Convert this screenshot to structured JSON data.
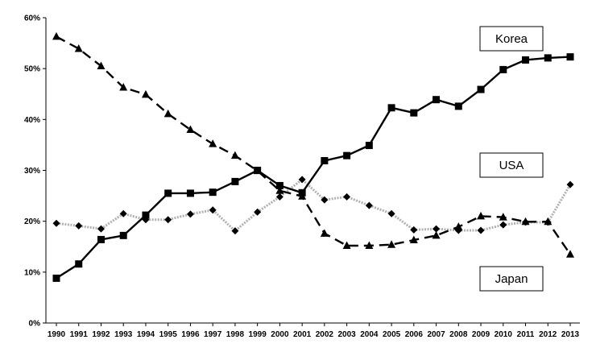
{
  "chart_data": {
    "type": "line",
    "title": "",
    "xlabel": "",
    "ylabel": "",
    "x": [
      1990,
      1991,
      1992,
      1993,
      1994,
      1995,
      1996,
      1997,
      1998,
      1999,
      2000,
      2001,
      2002,
      2003,
      2004,
      2005,
      2006,
      2007,
      2008,
      2009,
      2010,
      2011,
      2012,
      2013
    ],
    "ylim": [
      0,
      60
    ],
    "yticks": [
      0,
      10,
      20,
      30,
      40,
      50,
      60
    ],
    "ytick_labels": [
      "0%",
      "10%",
      "20%",
      "30%",
      "40%",
      "50%",
      "60%"
    ],
    "grid": false,
    "legend_placement": "right (labels beside series)",
    "series": [
      {
        "name": "Korea",
        "style": "solid",
        "marker": "square",
        "color": "#000000",
        "values": [
          8.8,
          11.6,
          16.4,
          17.2,
          21.2,
          25.5,
          25.5,
          25.7,
          27.8,
          30.0,
          27.0,
          25.6,
          31.9,
          32.9,
          34.9,
          42.3,
          41.3,
          43.9,
          42.6,
          45.9,
          49.8,
          51.7,
          52.1,
          52.3
        ]
      },
      {
        "name": "USA",
        "style": "dotted",
        "marker": "diamond",
        "color": "#b0b0b0",
        "values": [
          19.6,
          19.1,
          18.5,
          21.5,
          20.3,
          20.3,
          21.4,
          22.2,
          18.1,
          21.8,
          24.8,
          28.2,
          24.2,
          24.8,
          23.1,
          21.5,
          18.3,
          18.5,
          18.2,
          18.2,
          19.3,
          19.8,
          19.8,
          27.2
        ]
      },
      {
        "name": "Japan",
        "style": "dashed",
        "marker": "triangle",
        "color": "#000000",
        "values": [
          56.3,
          53.9,
          50.5,
          46.3,
          44.9,
          41.1,
          38.0,
          35.2,
          32.9,
          29.9,
          26.0,
          24.9,
          17.6,
          15.2,
          15.2,
          15.4,
          16.3,
          17.2,
          18.9,
          21.0,
          20.8,
          19.9,
          19.9,
          13.5
        ]
      }
    ]
  },
  "legend": {
    "korea_label": "Korea",
    "usa_label": "USA",
    "japan_label": "Japan"
  }
}
